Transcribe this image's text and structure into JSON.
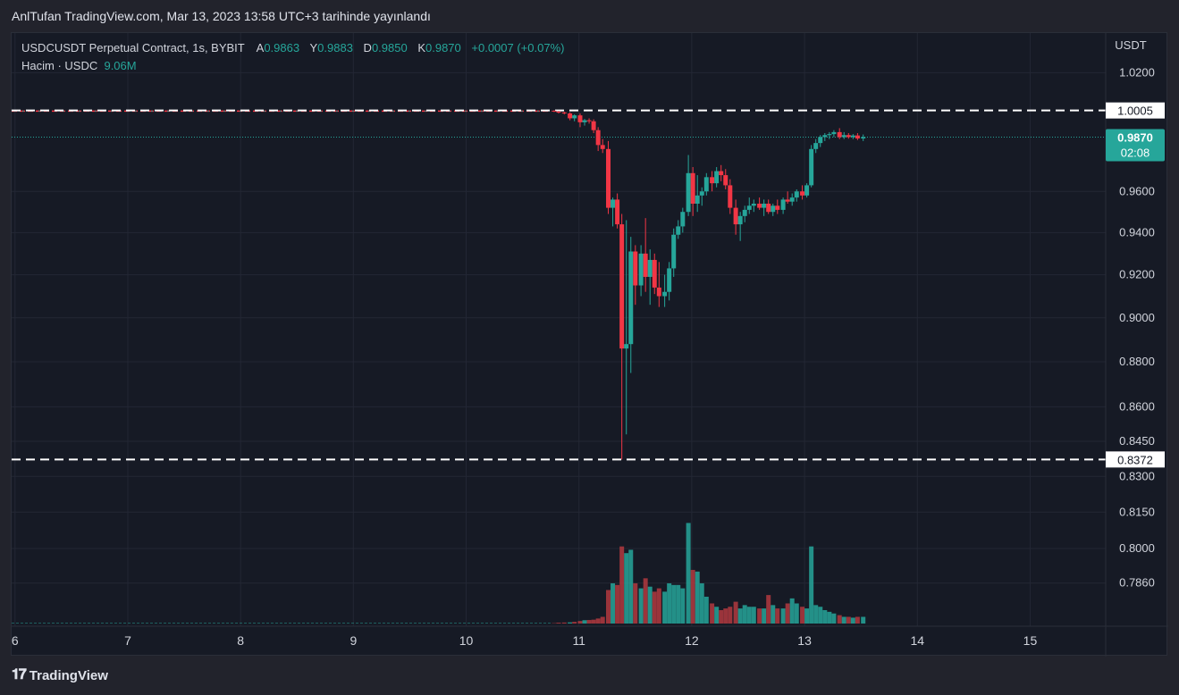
{
  "header": {
    "published": "AnlTufan TradingView.com, Mar 13, 2023 13:58 UTC+3 tarihinde yayınlandı"
  },
  "legend": {
    "symbol": "USDCUSDT Perpetual Contract, 1s, BYBIT",
    "open_label": "A",
    "open": "0.9863",
    "high_label": "Y",
    "high": "0.9883",
    "low_label": "D",
    "low": "0.9850",
    "close_label": "K",
    "close": "0.9870",
    "change": "+0.0007 (+0.07%)",
    "volume_label": "Hacim · USDC",
    "volume": "9.06M"
  },
  "footer": {
    "brand": "TradingView",
    "logo_icon": "tradingview-logo-icon"
  },
  "colors": {
    "up": "#26a69a",
    "down": "#f23645",
    "up_vol": "#26a69a",
    "down_vol": "#b2393f",
    "bg": "#161a25"
  },
  "chart_data": {
    "type": "candlestick",
    "x_ticks": [
      "6",
      "7",
      "8",
      "9",
      "10",
      "11",
      "12",
      "13",
      "14",
      "15"
    ],
    "x_range": [
      5.97,
      15.67
    ],
    "y_unit": "USDT",
    "y_ticks": [
      "1.0200",
      "0.9600",
      "0.9400",
      "0.9200",
      "0.9000",
      "0.8800",
      "0.8600",
      "0.8450",
      "0.8300",
      "0.8150",
      "0.8000",
      "0.7860"
    ],
    "y_range": [
      0.7738,
      1.0361
    ],
    "y_scale": "log",
    "horizontal_lines": [
      {
        "value": 1.0005,
        "label": "1.0005",
        "style": "dashed"
      },
      {
        "value": 0.8372,
        "label": "0.8372",
        "style": "dashed"
      }
    ],
    "last_price": {
      "value": 0.987,
      "label": "0.9870",
      "countdown": "02:08"
    },
    "flat_segment": {
      "x_start": 5.97,
      "x_end": 10.75,
      "price": 1.0002
    },
    "candles": [
      {
        "x": 10.78,
        "o": 1.0004,
        "h": 1.0006,
        "l": 0.9997,
        "c": 0.9999
      },
      {
        "x": 10.82,
        "o": 0.9999,
        "h": 1.0003,
        "l": 0.999,
        "c": 0.9995
      },
      {
        "x": 10.87,
        "o": 0.9995,
        "h": 0.9999,
        "l": 0.9985,
        "c": 0.999
      },
      {
        "x": 10.92,
        "o": 0.999,
        "h": 0.9996,
        "l": 0.9955,
        "c": 0.9965
      },
      {
        "x": 10.96,
        "o": 0.9965,
        "h": 0.9985,
        "l": 0.995,
        "c": 0.998
      },
      {
        "x": 11.01,
        "o": 0.998,
        "h": 0.999,
        "l": 0.992,
        "c": 0.9945
      },
      {
        "x": 11.05,
        "o": 0.9945,
        "h": 0.9962,
        "l": 0.9928,
        "c": 0.9955
      },
      {
        "x": 11.09,
        "o": 0.9955,
        "h": 0.9965,
        "l": 0.9938,
        "c": 0.995
      },
      {
        "x": 11.13,
        "o": 0.995,
        "h": 0.996,
        "l": 0.989,
        "c": 0.9905
      },
      {
        "x": 11.17,
        "o": 0.9905,
        "h": 0.992,
        "l": 0.98,
        "c": 0.983
      },
      {
        "x": 11.21,
        "o": 0.983,
        "h": 0.986,
        "l": 0.979,
        "c": 0.981
      },
      {
        "x": 11.26,
        "o": 0.981,
        "h": 0.985,
        "l": 0.949,
        "c": 0.952
      },
      {
        "x": 11.3,
        "o": 0.952,
        "h": 0.957,
        "l": 0.943,
        "c": 0.956
      },
      {
        "x": 11.34,
        "o": 0.956,
        "h": 0.959,
        "l": 0.942,
        "c": 0.944
      },
      {
        "x": 11.38,
        "o": 0.944,
        "h": 0.949,
        "l": 0.8372,
        "c": 0.886
      },
      {
        "x": 11.42,
        "o": 0.886,
        "h": 0.946,
        "l": 0.848,
        "c": 0.888
      },
      {
        "x": 11.46,
        "o": 0.888,
        "h": 0.938,
        "l": 0.875,
        "c": 0.931
      },
      {
        "x": 11.5,
        "o": 0.931,
        "h": 0.934,
        "l": 0.906,
        "c": 0.915
      },
      {
        "x": 11.55,
        "o": 0.915,
        "h": 0.934,
        "l": 0.91,
        "c": 0.93
      },
      {
        "x": 11.59,
        "o": 0.93,
        "h": 0.947,
        "l": 0.912,
        "c": 0.919
      },
      {
        "x": 11.63,
        "o": 0.919,
        "h": 0.932,
        "l": 0.906,
        "c": 0.927
      },
      {
        "x": 11.67,
        "o": 0.927,
        "h": 0.93,
        "l": 0.911,
        "c": 0.914
      },
      {
        "x": 11.71,
        "o": 0.914,
        "h": 0.926,
        "l": 0.905,
        "c": 0.91
      },
      {
        "x": 11.76,
        "o": 0.91,
        "h": 0.92,
        "l": 0.905,
        "c": 0.912
      },
      {
        "x": 11.8,
        "o": 0.912,
        "h": 0.926,
        "l": 0.908,
        "c": 0.923
      },
      {
        "x": 11.84,
        "o": 0.923,
        "h": 0.942,
        "l": 0.919,
        "c": 0.939
      },
      {
        "x": 11.88,
        "o": 0.939,
        "h": 0.946,
        "l": 0.937,
        "c": 0.943
      },
      {
        "x": 11.92,
        "o": 0.943,
        "h": 0.952,
        "l": 0.94,
        "c": 0.95
      },
      {
        "x": 11.97,
        "o": 0.95,
        "h": 0.978,
        "l": 0.948,
        "c": 0.969
      },
      {
        "x": 12.01,
        "o": 0.969,
        "h": 0.972,
        "l": 0.948,
        "c": 0.954
      },
      {
        "x": 12.05,
        "o": 0.954,
        "h": 0.968,
        "l": 0.95,
        "c": 0.958
      },
      {
        "x": 12.09,
        "o": 0.958,
        "h": 0.962,
        "l": 0.953,
        "c": 0.96
      },
      {
        "x": 12.13,
        "o": 0.96,
        "h": 0.969,
        "l": 0.958,
        "c": 0.967
      },
      {
        "x": 12.18,
        "o": 0.967,
        "h": 0.97,
        "l": 0.96,
        "c": 0.964
      },
      {
        "x": 12.22,
        "o": 0.964,
        "h": 0.972,
        "l": 0.962,
        "c": 0.97
      },
      {
        "x": 12.26,
        "o": 0.97,
        "h": 0.973,
        "l": 0.965,
        "c": 0.968
      },
      {
        "x": 12.3,
        "o": 0.968,
        "h": 0.971,
        "l": 0.961,
        "c": 0.963
      },
      {
        "x": 12.34,
        "o": 0.963,
        "h": 0.966,
        "l": 0.949,
        "c": 0.952
      },
      {
        "x": 12.39,
        "o": 0.952,
        "h": 0.956,
        "l": 0.939,
        "c": 0.944
      },
      {
        "x": 12.43,
        "o": 0.944,
        "h": 0.95,
        "l": 0.936,
        "c": 0.948
      },
      {
        "x": 12.47,
        "o": 0.948,
        "h": 0.953,
        "l": 0.945,
        "c": 0.951
      },
      {
        "x": 12.51,
        "o": 0.951,
        "h": 0.957,
        "l": 0.949,
        "c": 0.953
      },
      {
        "x": 12.55,
        "o": 0.953,
        "h": 0.956,
        "l": 0.95,
        "c": 0.954
      },
      {
        "x": 12.6,
        "o": 0.954,
        "h": 0.957,
        "l": 0.951,
        "c": 0.952
      },
      {
        "x": 12.64,
        "o": 0.952,
        "h": 0.956,
        "l": 0.948,
        "c": 0.954
      },
      {
        "x": 12.68,
        "o": 0.954,
        "h": 0.956,
        "l": 0.949,
        "c": 0.95
      },
      {
        "x": 12.72,
        "o": 0.95,
        "h": 0.954,
        "l": 0.948,
        "c": 0.953
      },
      {
        "x": 12.76,
        "o": 0.953,
        "h": 0.956,
        "l": 0.949,
        "c": 0.951
      },
      {
        "x": 12.81,
        "o": 0.951,
        "h": 0.957,
        "l": 0.949,
        "c": 0.956
      },
      {
        "x": 12.85,
        "o": 0.956,
        "h": 0.96,
        "l": 0.954,
        "c": 0.955
      },
      {
        "x": 12.89,
        "o": 0.955,
        "h": 0.959,
        "l": 0.953,
        "c": 0.957
      },
      {
        "x": 12.93,
        "o": 0.957,
        "h": 0.961,
        "l": 0.955,
        "c": 0.96
      },
      {
        "x": 12.98,
        "o": 0.96,
        "h": 0.963,
        "l": 0.956,
        "c": 0.958
      },
      {
        "x": 13.02,
        "o": 0.958,
        "h": 0.964,
        "l": 0.957,
        "c": 0.963
      },
      {
        "x": 13.06,
        "o": 0.963,
        "h": 0.983,
        "l": 0.962,
        "c": 0.981
      },
      {
        "x": 13.1,
        "o": 0.981,
        "h": 0.986,
        "l": 0.979,
        "c": 0.984
      },
      {
        "x": 13.14,
        "o": 0.984,
        "h": 0.988,
        "l": 0.982,
        "c": 0.987
      },
      {
        "x": 13.18,
        "o": 0.987,
        "h": 0.989,
        "l": 0.985,
        "c": 0.988
      },
      {
        "x": 13.22,
        "o": 0.988,
        "h": 0.9895,
        "l": 0.986,
        "c": 0.9885
      },
      {
        "x": 13.26,
        "o": 0.9885,
        "h": 0.9905,
        "l": 0.987,
        "c": 0.9895
      },
      {
        "x": 13.31,
        "o": 0.9895,
        "h": 0.9915,
        "l": 0.986,
        "c": 0.987
      },
      {
        "x": 13.35,
        "o": 0.987,
        "h": 0.9895,
        "l": 0.986,
        "c": 0.988
      },
      {
        "x": 13.39,
        "o": 0.988,
        "h": 0.989,
        "l": 0.9862,
        "c": 0.987
      },
      {
        "x": 13.43,
        "o": 0.987,
        "h": 0.9885,
        "l": 0.986,
        "c": 0.9878
      },
      {
        "x": 13.47,
        "o": 0.9878,
        "h": 0.989,
        "l": 0.9855,
        "c": 0.9863
      },
      {
        "x": 13.52,
        "o": 0.9863,
        "h": 0.9883,
        "l": 0.985,
        "c": 0.987
      }
    ],
    "volume": {
      "max_value": 9.06,
      "bars": [
        0.02,
        0.05,
        0.06,
        0.07,
        0.1,
        0.15,
        0.2,
        0.21,
        0.23,
        0.3,
        0.4,
        2.0,
        2.4,
        2.3,
        4.6,
        4.2,
        4.4,
        2.4,
        2.1,
        2.7,
        2.2,
        1.9,
        2.1,
        1.9,
        2.4,
        2.3,
        2.3,
        2.1,
        6.0,
        3.2,
        3.1,
        2.4,
        1.6,
        1.2,
        1.0,
        0.8,
        0.9,
        1.0,
        1.3,
        0.9,
        1.1,
        1.0,
        1.0,
        0.9,
        0.9,
        1.7,
        1.1,
        0.9,
        0.9,
        1.2,
        1.5,
        1.2,
        1.0,
        0.9,
        4.6,
        1.1,
        1.0,
        0.8,
        0.7,
        0.6,
        0.5,
        0.4,
        0.4,
        0.35,
        0.4,
        0.4
      ],
      "directions": [
        0,
        0,
        0,
        1,
        0,
        0,
        1,
        0,
        0,
        0,
        0,
        0,
        1,
        0,
        0,
        1,
        1,
        0,
        1,
        0,
        1,
        0,
        0,
        1,
        1,
        1,
        1,
        1,
        1,
        0,
        1,
        1,
        1,
        0,
        1,
        0,
        0,
        0,
        0,
        1,
        1,
        1,
        1,
        0,
        1,
        0,
        1,
        0,
        1,
        0,
        1,
        1,
        0,
        1,
        1,
        1,
        1,
        1,
        1,
        1,
        0,
        1,
        0,
        1,
        0,
        1
      ]
    }
  }
}
